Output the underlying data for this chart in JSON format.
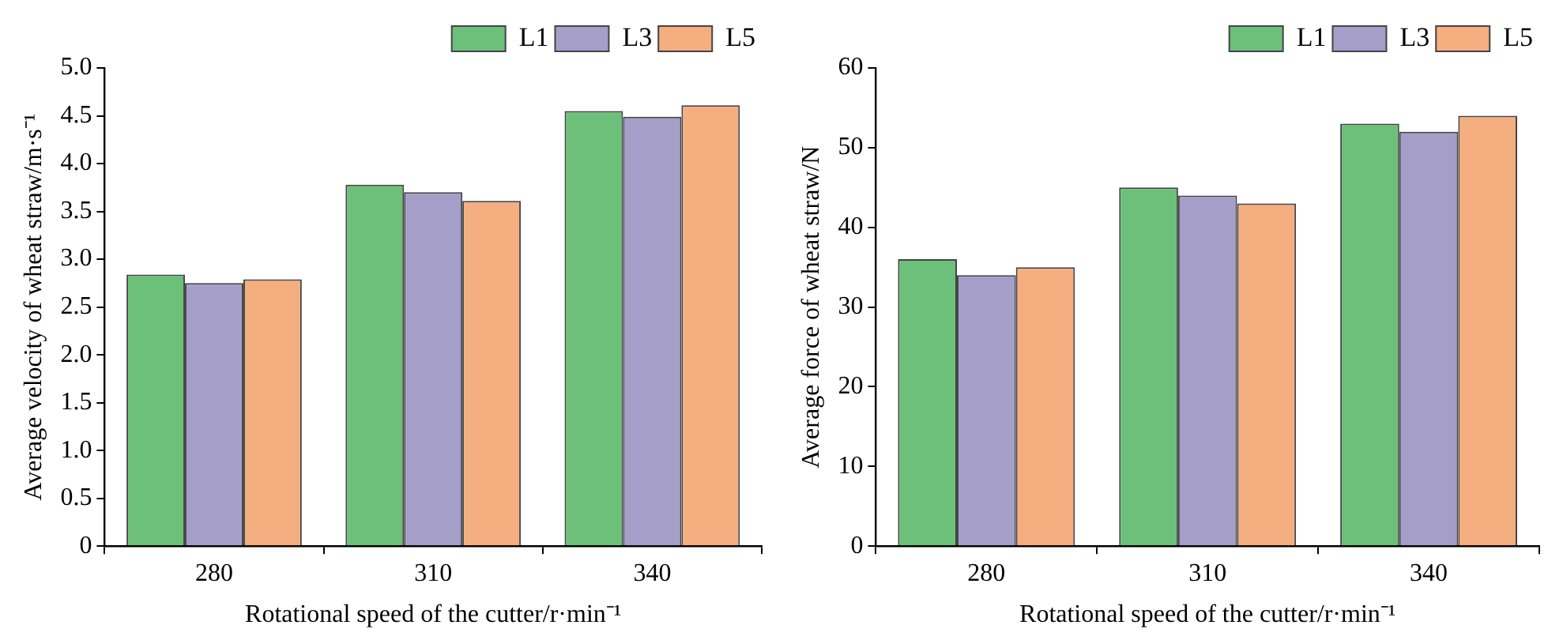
{
  "chart_data": [
    {
      "type": "bar",
      "xlabel": "Rotational speed of the cutter/r·min⁻¹",
      "ylabel": "Average velocity of wheat straw/m·s⁻¹",
      "categories": [
        "280",
        "310",
        "340"
      ],
      "series": [
        {
          "name": "L1",
          "color": "#6cc079",
          "values": [
            2.84,
            3.78,
            4.55
          ]
        },
        {
          "name": "L3",
          "color": "#a59ec8",
          "values": [
            2.75,
            3.7,
            4.49
          ]
        },
        {
          "name": "L5",
          "color": "#f5ae80",
          "values": [
            2.79,
            3.61,
            4.61
          ]
        }
      ],
      "ylim": [
        0,
        5
      ],
      "yticks": [
        {
          "value": 0,
          "label": "0"
        },
        0.5,
        {
          "value": 1,
          "label": "1.0"
        },
        1.5,
        {
          "value": 2,
          "label": "2.0"
        },
        2.5,
        {
          "value": 3,
          "label": "3.0"
        },
        3.5,
        {
          "value": 4,
          "label": "4.0"
        },
        4.5,
        {
          "value": 5,
          "label": "5.0"
        }
      ],
      "grid": false,
      "legend": "top right"
    },
    {
      "type": "bar",
      "xlabel": "Rotational speed of the cutter/r·min⁻¹",
      "ylabel": "Average force of wheat straw/N",
      "categories": [
        "280",
        "310",
        "340"
      ],
      "series": [
        {
          "name": "L1",
          "color": "#6cc079",
          "values": [
            36,
            45,
            53
          ]
        },
        {
          "name": "L3",
          "color": "#a59ec8",
          "values": [
            34,
            44,
            52
          ]
        },
        {
          "name": "L5",
          "color": "#f5ae80",
          "values": [
            35,
            43,
            54
          ]
        }
      ],
      "ylim": [
        0,
        60
      ],
      "yticks": [
        0,
        10,
        20,
        30,
        40,
        50,
        60
      ],
      "grid": false,
      "legend": "top right"
    }
  ]
}
